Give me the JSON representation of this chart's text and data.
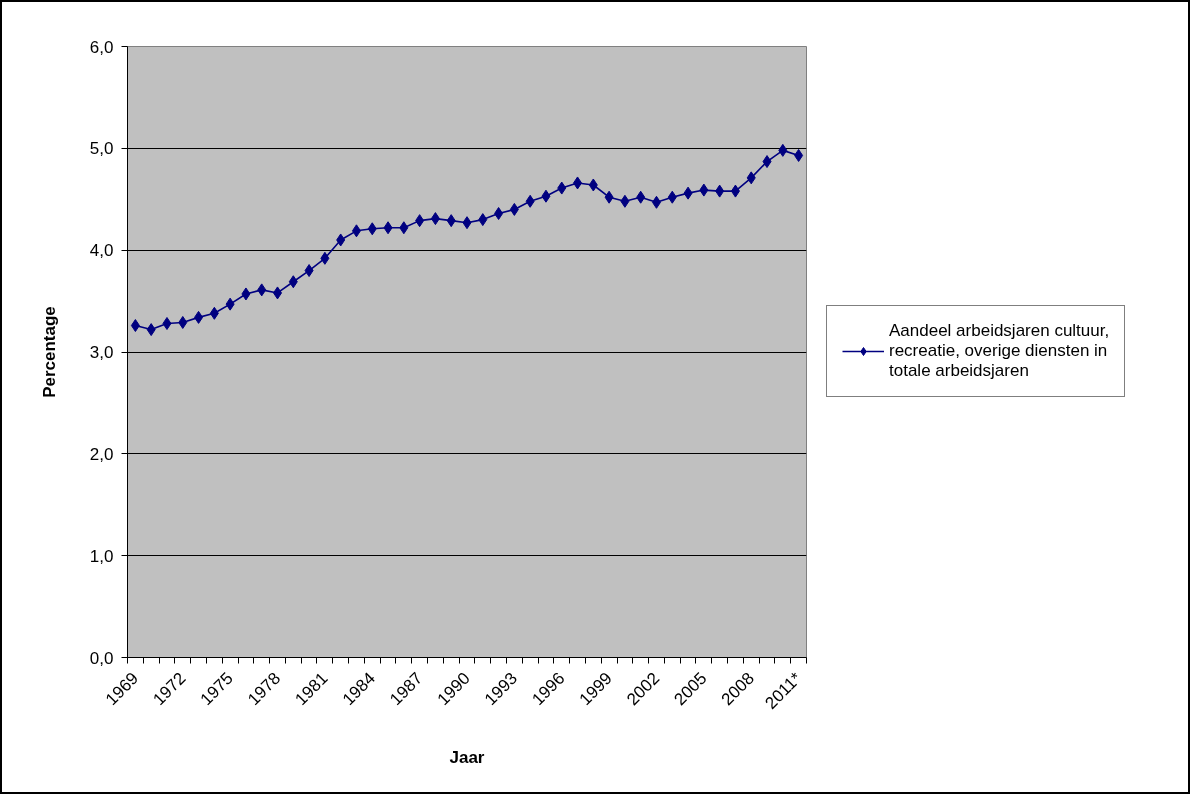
{
  "chart_data": {
    "type": "line",
    "xlabel": "Jaar",
    "ylabel": "Percentage",
    "categories": [
      "1969",
      null,
      null,
      "1972",
      null,
      null,
      "1975",
      null,
      null,
      "1978",
      null,
      null,
      "1981",
      null,
      null,
      "1984",
      null,
      null,
      "1987",
      null,
      null,
      "1990",
      null,
      null,
      "1993",
      null,
      null,
      "1996",
      null,
      null,
      "1999",
      null,
      null,
      "2002",
      null,
      null,
      "2005",
      null,
      null,
      "2008",
      null,
      null,
      "2011*"
    ],
    "series": [
      {
        "name": "Aandeel arbeidsjaren cultuur, recreatie, overige diensten in totale arbeidsjaren",
        "color": "#000080",
        "values": [
          3.26,
          3.22,
          3.28,
          3.29,
          3.34,
          3.38,
          3.47,
          3.57,
          3.61,
          3.58,
          3.69,
          3.8,
          3.92,
          4.1,
          4.19,
          4.21,
          4.22,
          4.22,
          4.29,
          4.31,
          4.29,
          4.27,
          4.3,
          4.36,
          4.4,
          4.48,
          4.53,
          4.61,
          4.66,
          4.64,
          4.52,
          4.48,
          4.52,
          4.47,
          4.52,
          4.56,
          4.59,
          4.58,
          4.58,
          4.71,
          4.87,
          4.98,
          4.93
        ]
      }
    ],
    "ylim": [
      0,
      6
    ],
    "yticks": [
      {
        "value": 0,
        "label": "0,0"
      },
      {
        "value": 1,
        "label": "1,0"
      },
      {
        "value": 2,
        "label": "2,0"
      },
      {
        "value": 3,
        "label": "3,0"
      },
      {
        "value": 4,
        "label": "4,0"
      },
      {
        "value": 5,
        "label": "5,0"
      },
      {
        "value": 6,
        "label": "6,0"
      }
    ],
    "grid": "y",
    "legend": "right",
    "marker": "diamond",
    "line_style": "solid"
  }
}
